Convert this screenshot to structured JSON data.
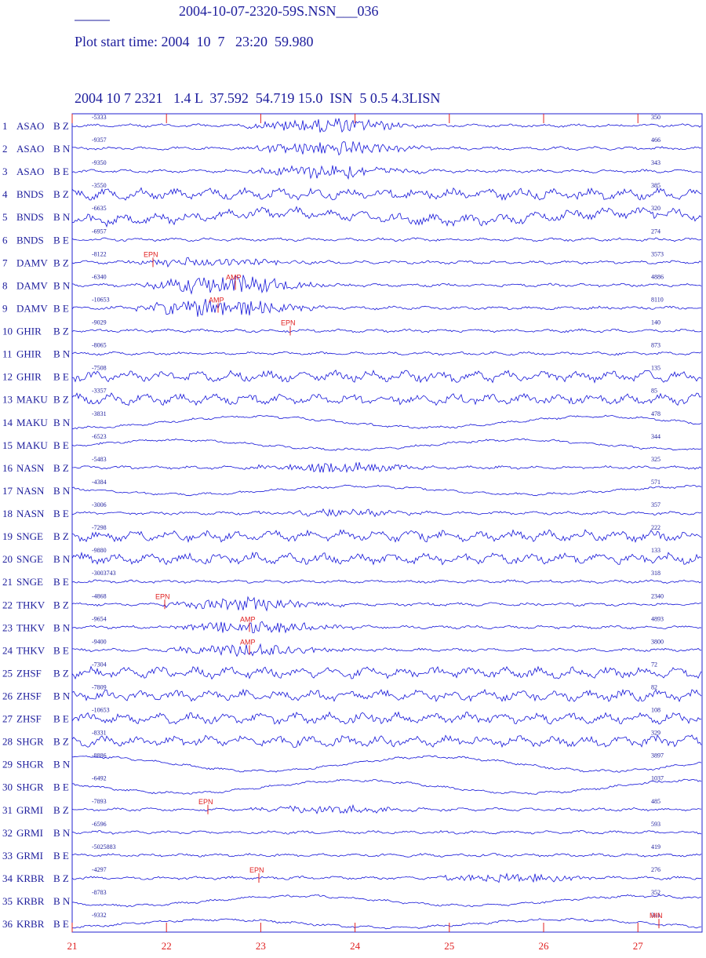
{
  "header": {
    "title": "2004-10-07-2320-59S.NSN___036",
    "start_time": "Plot start time: 2004  10  7   23:20  59.980",
    "event": "2004 10 7 2321   1.4 L  37.592  54.719 15.0  ISN  5 0.5 4.3LISN"
  },
  "traces": [
    {
      "number": "1",
      "station": "ASAO",
      "channel": "B Z",
      "min": "-5333",
      "max": "350"
    },
    {
      "number": "2",
      "station": "ASAO",
      "channel": "B N",
      "min": "-9357",
      "max": "466"
    },
    {
      "number": "3",
      "station": "ASAO",
      "channel": "B E",
      "min": "-9350",
      "max": "343"
    },
    {
      "number": "4",
      "station": "BNDS",
      "channel": "B Z",
      "min": "-3550",
      "max": "385"
    },
    {
      "number": "5",
      "station": "BNDS",
      "channel": "B N",
      "min": "-6635",
      "max": "320"
    },
    {
      "number": "6",
      "station": "BNDS",
      "channel": "B E",
      "min": "-6957",
      "max": "274"
    },
    {
      "number": "7",
      "station": "DAMV",
      "channel": "B Z",
      "min": "-8122",
      "max": "3573"
    },
    {
      "number": "8",
      "station": "DAMV",
      "channel": "B N",
      "min": "-6340",
      "max": "4886"
    },
    {
      "number": "9",
      "station": "DAMV",
      "channel": "B E",
      "min": "-10653",
      "max": "8110"
    },
    {
      "number": "10",
      "station": "GHIR",
      "channel": "B Z",
      "min": "-9029",
      "max": "140"
    },
    {
      "number": "11",
      "station": "GHIR",
      "channel": "B N",
      "min": "-8065",
      "max": "873"
    },
    {
      "number": "12",
      "station": "GHIR",
      "channel": "B E",
      "min": "-7508",
      "max": "135"
    },
    {
      "number": "13",
      "station": "MAKU",
      "channel": "B Z",
      "min": "-3357",
      "max": "85"
    },
    {
      "number": "14",
      "station": "MAKU",
      "channel": "B N",
      "min": "-3831",
      "max": "478"
    },
    {
      "number": "15",
      "station": "MAKU",
      "channel": "B E",
      "min": "-6523",
      "max": "344"
    },
    {
      "number": "16",
      "station": "NASN",
      "channel": "B Z",
      "min": "-5483",
      "max": "325"
    },
    {
      "number": "17",
      "station": "NASN",
      "channel": "B N",
      "min": "-4384",
      "max": "571"
    },
    {
      "number": "18",
      "station": "NASN",
      "channel": "B E",
      "min": "-3006",
      "max": "357"
    },
    {
      "number": "19",
      "station": "SNGE",
      "channel": "B Z",
      "min": "-7298",
      "max": "222"
    },
    {
      "number": "20",
      "station": "SNGE",
      "channel": "B N",
      "min": "-9880",
      "max": "133"
    },
    {
      "number": "21",
      "station": "SNGE",
      "channel": "B E",
      "min": "-3003743",
      "max": "318"
    },
    {
      "number": "22",
      "station": "THKV",
      "channel": "B Z",
      "min": "-4868",
      "max": "2340"
    },
    {
      "number": "23",
      "station": "THKV",
      "channel": "B N",
      "min": "-9654",
      "max": "4893"
    },
    {
      "number": "24",
      "station": "THKV",
      "channel": "B E",
      "min": "-9400",
      "max": "3800"
    },
    {
      "number": "25",
      "station": "ZHSF",
      "channel": "B Z",
      "min": "-7304",
      "max": "72"
    },
    {
      "number": "26",
      "station": "ZHSF",
      "channel": "B N",
      "min": "-7809",
      "max": "82"
    },
    {
      "number": "27",
      "station": "ZHSF",
      "channel": "B E",
      "min": "-10653",
      "max": "108"
    },
    {
      "number": "28",
      "station": "SHGR",
      "channel": "B Z",
      "min": "-8331",
      "max": "329"
    },
    {
      "number": "29",
      "station": "SHGR",
      "channel": "B N",
      "min": "-8886",
      "max": "3897"
    },
    {
      "number": "30",
      "station": "SHGR",
      "channel": "B E",
      "min": "-6492",
      "max": "1037"
    },
    {
      "number": "31",
      "station": "GRMI",
      "channel": "B Z",
      "min": "-7893",
      "max": "485"
    },
    {
      "number": "32",
      "station": "GRMI",
      "channel": "B N",
      "min": "-6596",
      "max": "593"
    },
    {
      "number": "33",
      "station": "GRMI",
      "channel": "B E",
      "min": "-5025883",
      "max": "419"
    },
    {
      "number": "34",
      "station": "KRBR",
      "channel": "B Z",
      "min": "-4297",
      "max": "276"
    },
    {
      "number": "35",
      "station": "KRBR",
      "channel": "B N",
      "min": "-8783",
      "max": "352"
    },
    {
      "number": "36",
      "station": "KRBR",
      "channel": "B E",
      "min": "-9332",
      "max": "341"
    }
  ],
  "picks": [
    "EPN",
    "AMP",
    "AMP",
    "EPN",
    "EPN",
    "AMP",
    "AMP",
    "EPN",
    "EPN",
    "MIN"
  ],
  "time_axis": [
    "21",
    "22",
    "23",
    "24",
    "25",
    "26",
    "27"
  ]
}
